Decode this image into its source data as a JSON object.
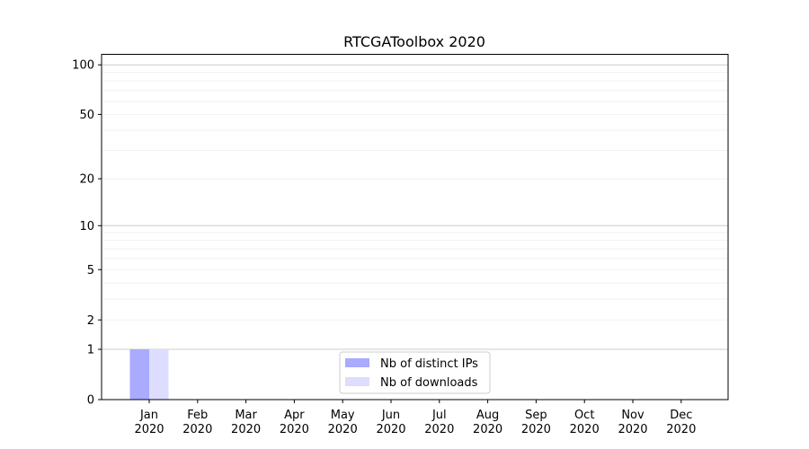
{
  "chart_data": {
    "type": "bar",
    "title": "RTCGAToolbox 2020",
    "xlabel": "",
    "ylabel": "",
    "y_scale": "log(1+x)",
    "ylim": [
      0,
      116
    ],
    "y_ticks": [
      0,
      1,
      2,
      5,
      10,
      20,
      50,
      100
    ],
    "grid": "horizontal, major and minor",
    "legend_placement": "lower-center",
    "categories": [
      {
        "month": "Jan",
        "year": "2020"
      },
      {
        "month": "Feb",
        "year": "2020"
      },
      {
        "month": "Mar",
        "year": "2020"
      },
      {
        "month": "Apr",
        "year": "2020"
      },
      {
        "month": "May",
        "year": "2020"
      },
      {
        "month": "Jun",
        "year": "2020"
      },
      {
        "month": "Jul",
        "year": "2020"
      },
      {
        "month": "Aug",
        "year": "2020"
      },
      {
        "month": "Sep",
        "year": "2020"
      },
      {
        "month": "Oct",
        "year": "2020"
      },
      {
        "month": "Nov",
        "year": "2020"
      },
      {
        "month": "Dec",
        "year": "2020"
      }
    ],
    "series": [
      {
        "name": "Nb of distinct IPs",
        "color": "#aaaaff",
        "values": [
          1,
          0,
          0,
          0,
          0,
          0,
          0,
          0,
          0,
          0,
          0,
          0
        ]
      },
      {
        "name": "Nb of downloads",
        "color": "#ddddff",
        "values": [
          1,
          0,
          0,
          0,
          0,
          0,
          0,
          0,
          0,
          0,
          0,
          0
        ]
      }
    ]
  }
}
